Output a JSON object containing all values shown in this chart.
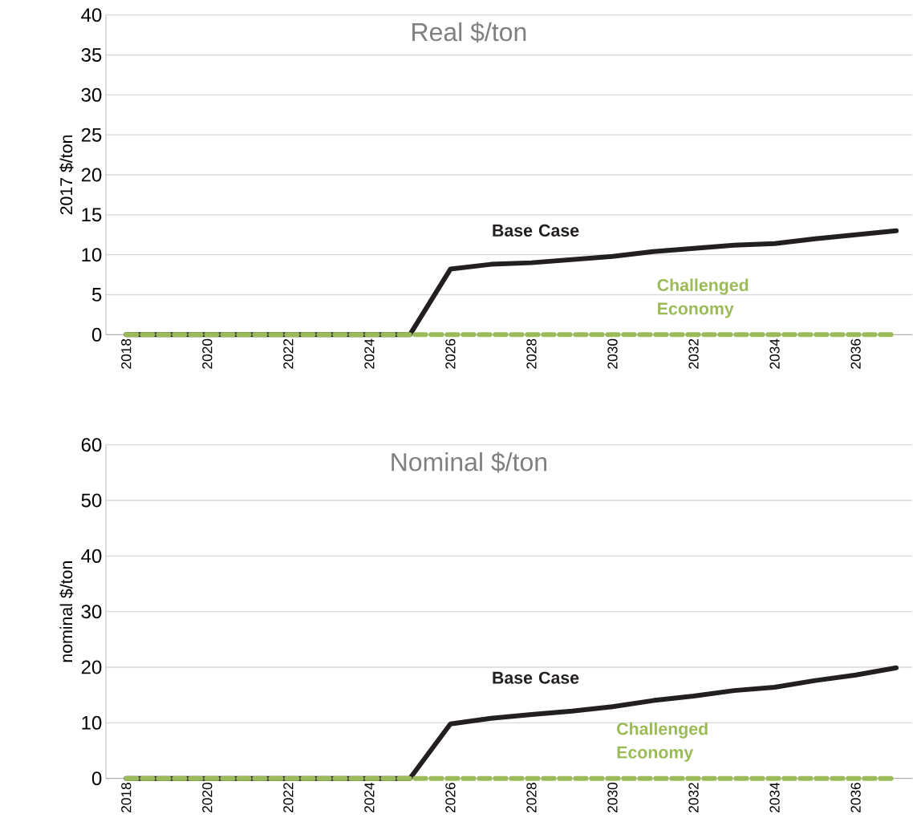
{
  "chart_data": [
    {
      "type": "line",
      "title": "Real $/ton",
      "ylabel": "2017 $/ton",
      "x": [
        2018,
        2019,
        2020,
        2021,
        2022,
        2023,
        2024,
        2025,
        2026,
        2027,
        2028,
        2029,
        2030,
        2031,
        2032,
        2033,
        2034,
        2035,
        2036,
        2037
      ],
      "series": [
        {
          "name": "Base Case",
          "color": "#231f20",
          "line_style": "solid",
          "values": [
            0,
            0,
            0,
            0,
            0,
            0,
            0,
            0,
            8.2,
            8.8,
            9.0,
            9.4,
            9.8,
            10.4,
            10.8,
            11.2,
            11.4,
            12.0,
            12.5,
            13.0
          ]
        },
        {
          "name": "Challenged Economy",
          "color": "#9bbb59",
          "line_style": "dashed",
          "values": [
            0,
            0,
            0,
            0,
            0,
            0,
            0,
            0,
            0,
            0,
            0,
            0,
            0,
            0,
            0,
            0,
            0,
            0,
            0,
            0
          ]
        }
      ],
      "xlim": [
        2017.5,
        2037.4
      ],
      "xticks": [
        2018,
        2020,
        2022,
        2024,
        2026,
        2028,
        2030,
        2032,
        2034,
        2036
      ],
      "ylim": [
        0,
        40
      ],
      "yticks": [
        0,
        5,
        10,
        15,
        20,
        25,
        30,
        35,
        40
      ],
      "grid": "y",
      "legend": false
    },
    {
      "type": "line",
      "title": "Nominal $/ton",
      "ylabel": "nominal $/ton",
      "x": [
        2018,
        2019,
        2020,
        2021,
        2022,
        2023,
        2024,
        2025,
        2026,
        2027,
        2028,
        2029,
        2030,
        2031,
        2032,
        2033,
        2034,
        2035,
        2036,
        2037
      ],
      "series": [
        {
          "name": "Base Case",
          "color": "#231f20",
          "line_style": "solid",
          "values": [
            0,
            0,
            0,
            0,
            0,
            0,
            0,
            0,
            9.8,
            10.8,
            11.5,
            12.1,
            12.9,
            14.0,
            14.8,
            15.8,
            16.4,
            17.6,
            18.6,
            19.9
          ]
        },
        {
          "name": "Challenged Economy",
          "color": "#9bbb59",
          "line_style": "dashed",
          "values": [
            0,
            0,
            0,
            0,
            0,
            0,
            0,
            0,
            0,
            0,
            0,
            0,
            0,
            0,
            0,
            0,
            0,
            0,
            0,
            0
          ]
        }
      ],
      "xlim": [
        2017.5,
        2037.4
      ],
      "xticks": [
        2018,
        2020,
        2022,
        2024,
        2026,
        2028,
        2030,
        2032,
        2034,
        2036
      ],
      "ylim": [
        0,
        60
      ],
      "yticks": [
        0,
        10,
        20,
        30,
        40,
        50,
        60
      ],
      "grid": "y",
      "legend": false
    }
  ]
}
